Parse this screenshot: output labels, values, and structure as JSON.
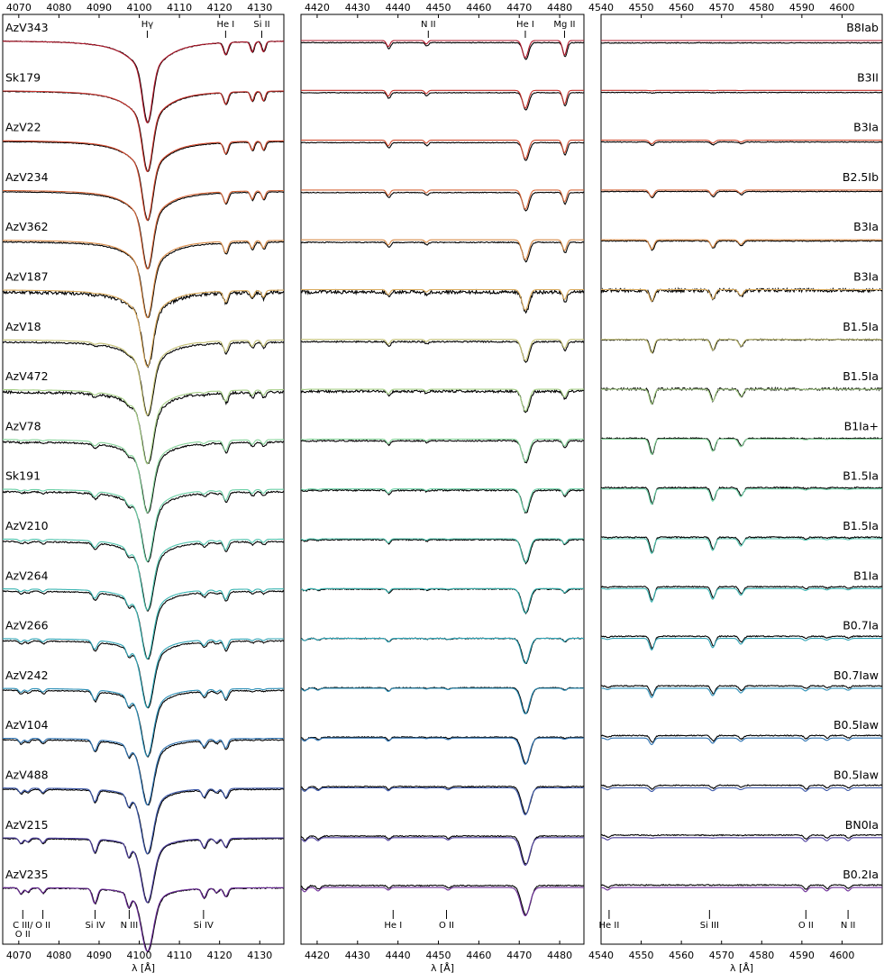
{
  "chart_data": {
    "type": "line",
    "xlabel": "λ [Å]",
    "ylabel": "",
    "panels": [
      {
        "xlim": [
          4066,
          4136
        ],
        "ticks": [
          4070,
          4080,
          4090,
          4100,
          4110,
          4120,
          4130
        ]
      },
      {
        "xlim": [
          4416,
          4486
        ],
        "ticks": [
          4420,
          4430,
          4440,
          4450,
          4460,
          4470,
          4480
        ]
      },
      {
        "xlim": [
          4540,
          4610
        ],
        "ticks": [
          4540,
          4550,
          4560,
          4570,
          4580,
          4590,
          4600
        ]
      }
    ],
    "stars": [
      {
        "name": "AzV343",
        "sptype": "B8Iab",
        "color": "#b2182b"
      },
      {
        "name": "Sk179",
        "sptype": "B3II",
        "color": "#c7322c"
      },
      {
        "name": "AzV22",
        "sptype": "B3Ia",
        "color": "#d24a2e"
      },
      {
        "name": "AzV234",
        "sptype": "B2.5Ib",
        "color": "#d8683a"
      },
      {
        "name": "AzV362",
        "sptype": "B3Ia",
        "color": "#d98a45"
      },
      {
        "name": "AzV187",
        "sptype": "B3Ia",
        "color": "#d9a95a"
      },
      {
        "name": "AzV18",
        "sptype": "B1.5Ia",
        "color": "#c4c074"
      },
      {
        "name": "AzV472",
        "sptype": "B1.5Ia",
        "color": "#a6cf86"
      },
      {
        "name": "AzV78",
        "sptype": "B1Ia+",
        "color": "#86d49a"
      },
      {
        "name": "Sk191",
        "sptype": "B1.5Ia",
        "color": "#6ad0a6"
      },
      {
        "name": "AzV210",
        "sptype": "B1.5Ia",
        "color": "#4fc4ae"
      },
      {
        "name": "AzV264",
        "sptype": "B1Ia",
        "color": "#3bb6b3"
      },
      {
        "name": "AzV266",
        "sptype": "B0.7Ia",
        "color": "#2fa4b6"
      },
      {
        "name": "AzV242",
        "sptype": "B0.7Iaw",
        "color": "#2b8fb7"
      },
      {
        "name": "AzV104",
        "sptype": "B0.5Iaw",
        "color": "#2f74b3"
      },
      {
        "name": "AzV488",
        "sptype": "B0.5Iaw",
        "color": "#3a56a8"
      },
      {
        "name": "AzV215",
        "sptype": "BN0Ia",
        "color": "#4d3f9e"
      },
      {
        "name": "AzV235",
        "sptype": "B0.2Ia",
        "color": "#6a2a96"
      }
    ],
    "top_line_ids": [
      {
        "panel": 0,
        "label": "Hγ",
        "wl": 4102
      },
      {
        "panel": 0,
        "label": "He I",
        "wl": 4121.5
      },
      {
        "panel": 0,
        "label": "Si II",
        "wl": 4130.5
      },
      {
        "panel": 1,
        "label": "N II",
        "wl": 4447.5
      },
      {
        "panel": 1,
        "label": "He I",
        "wl": 4471.5
      },
      {
        "panel": 1,
        "label": "Mg II",
        "wl": 4481.2
      }
    ],
    "bottom_line_ids": [
      {
        "panel": 0,
        "label": "C III/",
        "label2": "O II",
        "wl": 4071
      },
      {
        "panel": 0,
        "label": "O II",
        "wl": 4076
      },
      {
        "panel": 0,
        "label": "Si IV",
        "wl": 4089
      },
      {
        "panel": 0,
        "label": "N III",
        "wl": 4097.5
      },
      {
        "panel": 0,
        "label": "Si IV",
        "wl": 4116
      },
      {
        "panel": 1,
        "label": "He I",
        "wl": 4438.8
      },
      {
        "panel": 1,
        "label": "O II",
        "wl": 4452
      },
      {
        "panel": 2,
        "label": "He II",
        "wl": 4542
      },
      {
        "panel": 2,
        "label": "Si III",
        "wl": 4567
      },
      {
        "panel": 2,
        "label": "O II",
        "wl": 4591
      },
      {
        "panel": 2,
        "label": "N II",
        "wl": 4601.5
      }
    ]
  }
}
